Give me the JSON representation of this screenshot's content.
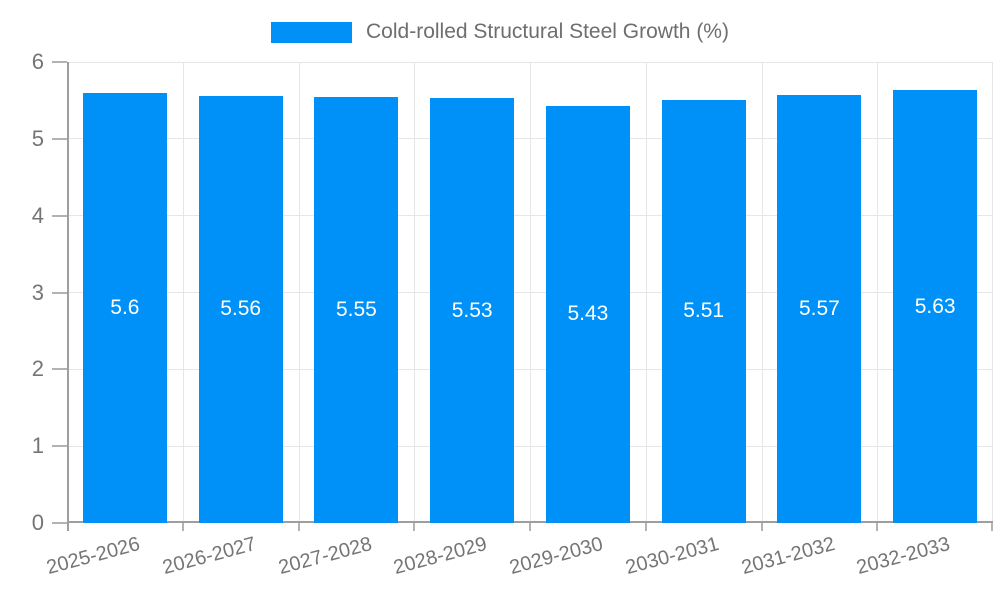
{
  "chart_data": {
    "type": "bar",
    "title": "",
    "legend": "Cold-rolled Structural Steel Growth (%)",
    "legend_position": "top-center",
    "categories": [
      "2025-2026",
      "2026-2027",
      "2027-2028",
      "2028-2029",
      "2029-2030",
      "2030-2031",
      "2031-2032",
      "2032-2033"
    ],
    "values": [
      5.6,
      5.56,
      5.55,
      5.53,
      5.43,
      5.51,
      5.57,
      5.63
    ],
    "value_labels": [
      "5.6",
      "5.56",
      "5.55",
      "5.53",
      "5.43",
      "5.51",
      "5.57",
      "5.63"
    ],
    "xlabel": "",
    "ylabel": "",
    "ylim": [
      0,
      6
    ],
    "ytick_labels": [
      "0",
      "1",
      "2",
      "3",
      "4",
      "5",
      "6"
    ],
    "grid": true,
    "colors": {
      "bar": "#0091f8",
      "grid": "#e6e6e6",
      "axis": "#9e9e9e",
      "tick_text": "#757575",
      "value_text": "#ffffff",
      "background": "#ffffff"
    }
  }
}
